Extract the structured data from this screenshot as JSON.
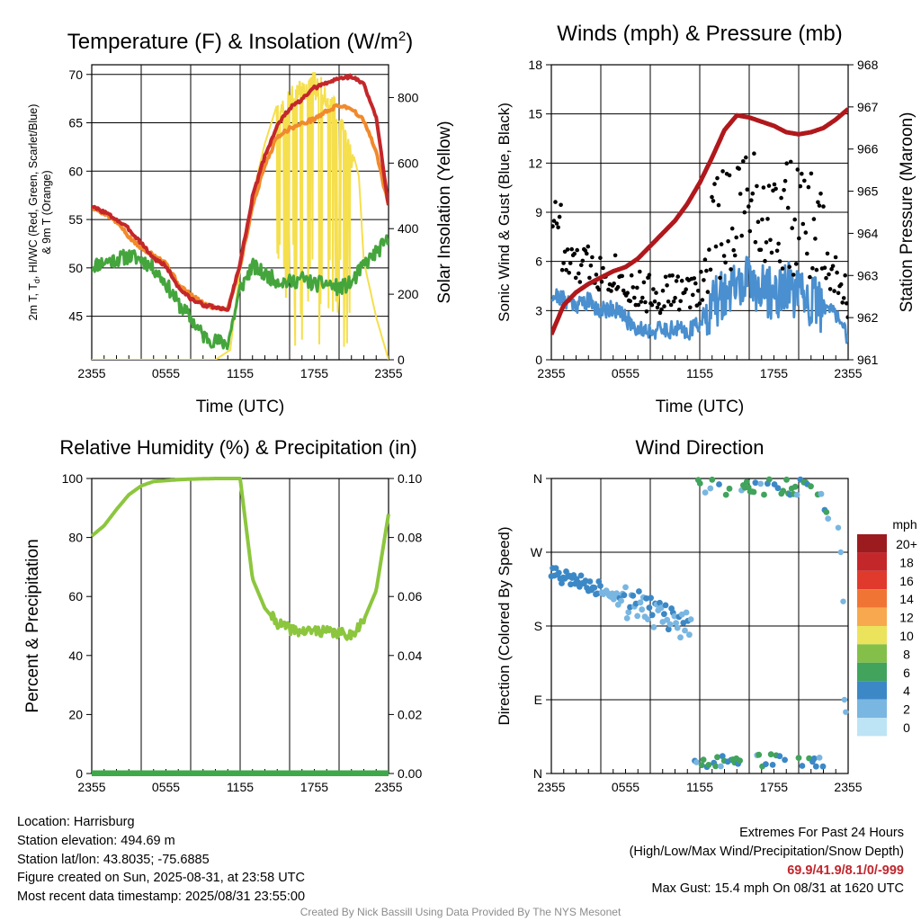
{
  "chart_data": [
    {
      "id": "temp",
      "type": "line",
      "title_main": "Temperature (F) & Insolation (W/m",
      "title_sup": "2",
      "title_close": ")",
      "ylabel_lines": [
        "2m T, T",
        "d",
        ", HI/WC (Red, Green, Scarlet/Blue)",
        "& 9m T (Orange)"
      ],
      "y2label": "Solar Insolation (Yellow)",
      "xlabel": "Time (UTC)",
      "x_ticks": [
        "2355",
        "0555",
        "1155",
        "1755",
        "2355"
      ],
      "y_ticks": [
        "45",
        "50",
        "55",
        "60",
        "65",
        "70"
      ],
      "y2_ticks": [
        "0",
        "200",
        "400",
        "600",
        "800"
      ],
      "ylim": [
        40.5,
        71
      ],
      "y2lim": [
        0,
        900
      ],
      "series": [
        {
          "color": "#f08a2c",
          "x": [
            0,
            1,
            2,
            3,
            4,
            5,
            6,
            7,
            8,
            9,
            10,
            11,
            12,
            13,
            14,
            15,
            16,
            17,
            18,
            19,
            20,
            21,
            22,
            23,
            24
          ],
          "values": [
            56.2,
            55.7,
            54.8,
            53.2,
            52.0,
            51.4,
            50.5,
            48.3,
            47.2,
            46.3,
            45.9,
            45.8,
            50.2,
            56.4,
            60.6,
            63.6,
            64.4,
            64.9,
            65.4,
            66.2,
            66.8,
            66.5,
            65.2,
            62.0,
            56.4
          ]
        },
        {
          "color": "#c4272a",
          "x": [
            0,
            1,
            2,
            3,
            4,
            5,
            6,
            7,
            8,
            9,
            10,
            11,
            12,
            13,
            14,
            15,
            16,
            17,
            18,
            19,
            20,
            21,
            22,
            23,
            24
          ],
          "values": [
            56.3,
            55.8,
            55.0,
            54.0,
            52.6,
            51.0,
            50.2,
            48.0,
            46.8,
            46.2,
            45.9,
            45.6,
            50.5,
            57.3,
            61.6,
            64.7,
            66.5,
            67.4,
            68.6,
            69.1,
            69.6,
            69.8,
            69.0,
            65.5,
            56.5
          ]
        },
        {
          "color": "#45a53d",
          "x": [
            0,
            1,
            2,
            3,
            4,
            5,
            6,
            7,
            8,
            9,
            10,
            11,
            12,
            13,
            14,
            15,
            16,
            17,
            18,
            19,
            20,
            21,
            22,
            23,
            24
          ],
          "values": [
            50.2,
            50.6,
            50.9,
            51.2,
            50.9,
            50.0,
            48.4,
            46.3,
            44.8,
            43.0,
            42.4,
            42.2,
            47.8,
            50.2,
            49.3,
            48.7,
            48.5,
            48.9,
            48.3,
            48.4,
            47.9,
            48.4,
            50.3,
            51.6,
            52.9
          ]
        },
        {
          "color": "#f5df4d",
          "x": [
            0,
            2,
            4,
            6,
            8,
            10,
            11.2,
            12,
            13,
            14,
            15,
            16,
            17,
            18,
            19,
            20,
            21,
            21.6,
            22,
            23,
            24
          ],
          "values": [
            0,
            0,
            0,
            0,
            0,
            0,
            30,
            280,
            500,
            660,
            780,
            830,
            860,
            880,
            850,
            780,
            650,
            560,
            300,
            130,
            0
          ]
        }
      ]
    },
    {
      "id": "wind",
      "type": "line",
      "title": "Winds (mph) & Pressure (mb)",
      "ylabel": "Sonic Wind & Gust (Blue, Black)",
      "y2label": "Station Pressure (Maroon)",
      "xlabel": "Time (UTC)",
      "x_ticks": [
        "2355",
        "0555",
        "1155",
        "1755",
        "2355"
      ],
      "y_ticks": [
        "0",
        "3",
        "6",
        "9",
        "12",
        "15",
        "18"
      ],
      "y2_ticks": [
        "961",
        "962",
        "963",
        "964",
        "965",
        "966",
        "967",
        "968"
      ],
      "ylim": [
        0,
        18
      ],
      "y2lim": [
        961,
        968
      ],
      "series": [
        {
          "color": "#4a8fcf",
          "x": [
            0,
            1,
            2,
            3,
            4,
            5,
            6,
            7,
            8,
            9,
            10,
            11,
            12,
            13,
            14,
            15,
            16,
            17,
            18,
            19,
            20,
            21,
            22,
            23,
            24
          ],
          "values": [
            4.0,
            3.7,
            3.4,
            3.6,
            3.0,
            3.2,
            2.5,
            1.9,
            1.8,
            1.8,
            1.9,
            1.7,
            2.3,
            3.3,
            4.0,
            4.5,
            4.8,
            4.3,
            4.0,
            4.5,
            3.8,
            3.6,
            3.2,
            2.9,
            1.4
          ]
        },
        {
          "color": "#b0181c",
          "x": [
            0,
            1,
            2,
            3,
            4,
            5,
            6,
            7,
            8,
            9,
            10,
            11,
            12,
            13,
            14,
            15,
            16,
            17,
            18,
            19,
            20,
            21,
            22,
            23,
            24
          ],
          "values": [
            961.6,
            962.3,
            962.6,
            962.8,
            962.95,
            963.1,
            963.2,
            963.4,
            963.7,
            964.0,
            964.3,
            964.7,
            965.2,
            965.8,
            966.45,
            966.8,
            966.75,
            966.65,
            966.55,
            966.4,
            966.35,
            966.4,
            966.5,
            966.7,
            966.95
          ]
        }
      ],
      "gust_color": "#000000"
    },
    {
      "id": "rh",
      "type": "line",
      "title": "Relative Humidity (%) & Precipitation (in)",
      "ylabel": "Percent & Precipitation",
      "x_ticks": [
        "2355",
        "0555",
        "1155",
        "1755",
        "2355"
      ],
      "y_ticks": [
        "0",
        "20",
        "40",
        "60",
        "80",
        "100"
      ],
      "y2_ticks": [
        "0.00",
        "0.02",
        "0.04",
        "0.06",
        "0.08",
        "0.10"
      ],
      "ylim": [
        0,
        100
      ],
      "y2lim": [
        0,
        0.1
      ],
      "series": [
        {
          "color": "#8cc63e",
          "x": [
            0,
            1,
            2,
            3,
            4,
            5,
            6,
            7,
            8,
            9,
            10,
            11,
            12,
            13,
            14,
            15,
            16,
            17,
            18,
            19,
            20,
            21,
            22,
            23,
            24
          ],
          "values": [
            80.5,
            84.0,
            89.5,
            94.5,
            97.5,
            99.0,
            99.3,
            99.6,
            99.8,
            99.9,
            100,
            100,
            100,
            66.0,
            56.0,
            51.0,
            49.0,
            48.0,
            48.5,
            48.0,
            47.5,
            47.0,
            52.0,
            62.0,
            88.0
          ]
        },
        {
          "color": "#3ea84a",
          "x": [
            0,
            24
          ],
          "values": [
            0,
            0
          ]
        }
      ]
    },
    {
      "id": "wdir",
      "type": "scatter",
      "title": "Wind Direction",
      "ylabel": "Direction (Colored By Speed)",
      "x_ticks": [
        "2355",
        "0555",
        "1155",
        "1755",
        "2355"
      ],
      "y_ticks": [
        "N",
        "E",
        "S",
        "W",
        "N"
      ],
      "ylim": [
        0,
        360
      ],
      "legend_title": "mph",
      "legend_labels": [
        "20+",
        "18",
        "16",
        "14",
        "12",
        "10",
        "8",
        "6",
        "4",
        "2",
        "0"
      ],
      "legend_colors": [
        "#9c1b1f",
        "#c4272a",
        "#e03a2c",
        "#f07535",
        "#f8a84e",
        "#ece35c",
        "#84bf4a",
        "#41a35c",
        "#3c88c6",
        "#79b6e1",
        "#bde4f5"
      ]
    }
  ],
  "info_left": [
    "Location: Harrisburg",
    "Station elevation: 494.69 m",
    "Station lat/lon: 43.8035; -75.6885",
    "Figure created on Sun, 2025-08-31, at 23:58 UTC",
    "Most recent data timestamp: 2025/08/31 23:55:00"
  ],
  "extremes": {
    "heading": "Extremes For Past 24 Hours",
    "subheading": "(High/Low/Max Wind/Precipitation/Snow Depth)",
    "values": "69.9/41.9/8.1/0/-999",
    "gust": "Max Gust: 15.4 mph On 08/31 at 1620 UTC"
  },
  "credit": "Created By Nick Bassill Using Data Provided By The NYS Mesonet"
}
